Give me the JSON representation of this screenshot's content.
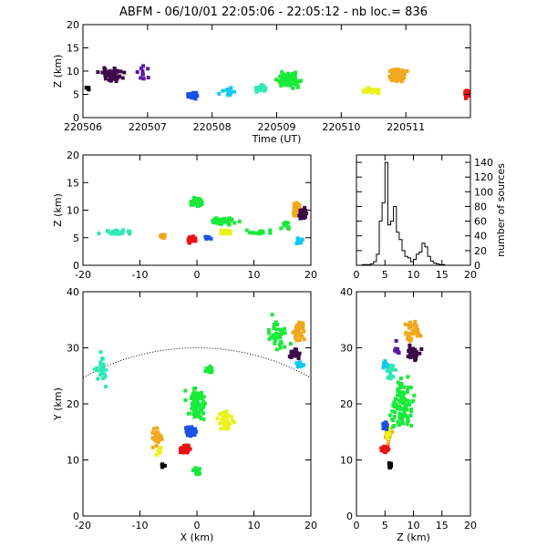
{
  "title": "ABFM - 06/10/01 22:05:06 - 22:05:12 - nb loc.=     836",
  "colors": {
    "black": "#000000",
    "dark_purple": "#3d0a4a",
    "purple": "#5a16a6",
    "blue": "#1a52e6",
    "cyan": "#13c8ee",
    "aqua": "#2ee9b4",
    "green": "#19ea3a",
    "yellow": "#e9f21a",
    "orange": "#f2a81c",
    "red": "#ed1212"
  },
  "chart_data": [
    {
      "id": "time-height",
      "type": "scatter",
      "xlabel": "Time (UT)",
      "ylabel": "Z (km)",
      "xlim": [
        220506,
        220512
      ],
      "ylim": [
        0,
        20
      ],
      "xticks": [
        "220506",
        "220507",
        "220508",
        "220509",
        "220510",
        "220511"
      ],
      "yticks": [
        "0",
        "5",
        "10",
        "15",
        "20"
      ],
      "clusters": [
        {
          "color": "black",
          "x": 220506.07,
          "dx": 0.06,
          "y": 6.2,
          "dy": 1.2,
          "n": 6
        },
        {
          "color": "dark_purple",
          "x": 220506.45,
          "dx": 0.3,
          "y": 9.2,
          "dy": 2.3,
          "n": 55
        },
        {
          "color": "purple",
          "x": 220506.95,
          "dx": 0.2,
          "y": 9.5,
          "dy": 3.0,
          "n": 10
        },
        {
          "color": "blue",
          "x": 220507.7,
          "dx": 0.12,
          "y": 4.8,
          "dy": 1.1,
          "n": 30
        },
        {
          "color": "cyan",
          "x": 220508.25,
          "dx": 0.2,
          "y": 5.5,
          "dy": 1.3,
          "n": 15
        },
        {
          "color": "aqua",
          "x": 220508.75,
          "dx": 0.2,
          "y": 6.3,
          "dy": 1.2,
          "n": 25
        },
        {
          "color": "green",
          "x": 220509.2,
          "dx": 0.3,
          "y": 8.0,
          "dy": 2.5,
          "n": 90
        },
        {
          "color": "yellow",
          "x": 220510.45,
          "dx": 0.22,
          "y": 5.8,
          "dy": 1.0,
          "n": 35
        },
        {
          "color": "orange",
          "x": 220510.85,
          "dx": 0.25,
          "y": 9.0,
          "dy": 2.3,
          "n": 80
        },
        {
          "color": "red",
          "x": 220511.95,
          "dx": 0.06,
          "y": 5.0,
          "dy": 1.6,
          "n": 30
        }
      ]
    },
    {
      "id": "x-height",
      "type": "scatter",
      "xlabel": "",
      "ylabel": "Z (km)",
      "xlim": [
        -20,
        20
      ],
      "ylim": [
        0,
        20
      ],
      "xticks": [
        "-20",
        "-10",
        "0",
        "10",
        "20"
      ],
      "yticks": [
        "0",
        "5",
        "10",
        "15",
        "20"
      ],
      "clusters": [
        {
          "color": "aqua",
          "x": -14,
          "dx": 5,
          "y": 6.0,
          "dy": 0.7,
          "n": 30
        },
        {
          "color": "orange",
          "x": -6,
          "dx": 1,
          "y": 5.3,
          "dy": 0.6,
          "n": 20
        },
        {
          "color": "red",
          "x": -1,
          "dx": 1.2,
          "y": 4.7,
          "dy": 1.0,
          "n": 40
        },
        {
          "color": "blue",
          "x": 2,
          "dx": 1.5,
          "y": 5.0,
          "dy": 0.4,
          "n": 12
        },
        {
          "color": "green",
          "x": 0,
          "dx": 1.5,
          "y": 11.5,
          "dy": 1.5,
          "n": 45
        },
        {
          "color": "green",
          "x": 5,
          "dx": 4,
          "y": 8.0,
          "dy": 1.5,
          "n": 40
        },
        {
          "color": "yellow",
          "x": 5,
          "dx": 2,
          "y": 6.0,
          "dy": 0.8,
          "n": 25
        },
        {
          "color": "green",
          "x": 11,
          "dx": 4,
          "y": 6.0,
          "dy": 0.8,
          "n": 15
        },
        {
          "color": "orange",
          "x": 17.5,
          "dx": 1.2,
          "y": 10.0,
          "dy": 2.5,
          "n": 45
        },
        {
          "color": "dark_purple",
          "x": 18.5,
          "dx": 1.0,
          "y": 9.5,
          "dy": 2.0,
          "n": 40
        },
        {
          "color": "cyan",
          "x": 18,
          "dx": 1.0,
          "y": 4.5,
          "dy": 1.0,
          "n": 15
        },
        {
          "color": "green",
          "x": 15.5,
          "dx": 1.5,
          "y": 7.5,
          "dy": 1.5,
          "n": 12
        }
      ]
    },
    {
      "id": "z-histogram",
      "type": "line",
      "ylabel": "number of sources",
      "xlim": [
        0,
        20
      ],
      "ylim": [
        0,
        150
      ],
      "xticks": [
        "0",
        "5",
        "10",
        "15",
        "20"
      ],
      "yticks": [
        "0",
        "20",
        "40",
        "60",
        "80",
        "100",
        "120",
        "140"
      ],
      "z": [
        0,
        0.5,
        1,
        1.5,
        2,
        2.5,
        3,
        3.5,
        4,
        4.5,
        5,
        5.5,
        6,
        6.5,
        7,
        7.5,
        8,
        8.5,
        9,
        9.5,
        10,
        10.5,
        11,
        11.5,
        12,
        12.5,
        13,
        13.5,
        14,
        14.5,
        15,
        15.5,
        16,
        16.5,
        17,
        17.5,
        18,
        18.5,
        19,
        19.5
      ],
      "counts": [
        0,
        0,
        1,
        1,
        1,
        2,
        5,
        15,
        60,
        85,
        140,
        55,
        60,
        80,
        45,
        35,
        20,
        12,
        10,
        5,
        8,
        15,
        18,
        30,
        25,
        12,
        6,
        3,
        2,
        1,
        1,
        0,
        0,
        0,
        0,
        0,
        0,
        0,
        0,
        0
      ]
    },
    {
      "id": "plan-view",
      "type": "scatter",
      "xlabel": "X (km)",
      "ylabel": "Y (km)",
      "xlim": [
        -20,
        20
      ],
      "ylim": [
        0,
        40
      ],
      "xticks": [
        "-20",
        "-10",
        "0",
        "10",
        "20"
      ],
      "yticks": [
        "0",
        "10",
        "20",
        "30",
        "40"
      ],
      "range_ring": {
        "center": [
          0,
          -10
        ],
        "radius_km": 40
      },
      "clusters": [
        {
          "color": "aqua",
          "x": -17,
          "dx": 3,
          "y": 26,
          "dy": 4,
          "n": 25
        },
        {
          "color": "orange",
          "x": -7,
          "dx": 1.5,
          "y": 14,
          "dy": 2.5,
          "n": 35
        },
        {
          "color": "yellow",
          "x": -6.5,
          "dx": 1,
          "y": 11.5,
          "dy": 1.5,
          "n": 12
        },
        {
          "color": "black",
          "x": -6,
          "dx": 0.8,
          "y": 9,
          "dy": 0.8,
          "n": 8
        },
        {
          "color": "red",
          "x": -2,
          "dx": 1.5,
          "y": 12,
          "dy": 1.2,
          "n": 30
        },
        {
          "color": "blue",
          "x": -1,
          "dx": 1.5,
          "y": 15,
          "dy": 1.5,
          "n": 30
        },
        {
          "color": "green",
          "x": 0,
          "dx": 3,
          "y": 20,
          "dy": 5,
          "n": 70
        },
        {
          "color": "green",
          "x": 2,
          "dx": 1.2,
          "y": 26,
          "dy": 1,
          "n": 25
        },
        {
          "color": "yellow",
          "x": 5,
          "dx": 2,
          "y": 17,
          "dy": 3,
          "n": 40
        },
        {
          "color": "green",
          "x": 14,
          "dx": 4,
          "y": 32,
          "dy": 5,
          "n": 40
        },
        {
          "color": "orange",
          "x": 18,
          "dx": 1.5,
          "y": 33,
          "dy": 3,
          "n": 40
        },
        {
          "color": "dark_purple",
          "x": 17,
          "dx": 2,
          "y": 29,
          "dy": 1.5,
          "n": 30
        },
        {
          "color": "cyan",
          "x": 18,
          "dx": 1.2,
          "y": 27,
          "dy": 1,
          "n": 15
        },
        {
          "color": "green",
          "x": 0,
          "dx": 1.5,
          "y": 8,
          "dy": 1.5,
          "n": 20
        }
      ]
    },
    {
      "id": "z-plan",
      "type": "scatter",
      "xlabel": "Z (km)",
      "ylabel": "",
      "xlim": [
        0,
        20
      ],
      "ylim": [
        0,
        40
      ],
      "xticks": [
        "0",
        "5",
        "10",
        "15",
        "20"
      ],
      "yticks": [
        "0",
        "10",
        "20",
        "30",
        "40"
      ],
      "clusters": [
        {
          "color": "black",
          "x": 6,
          "dx": 0.5,
          "y": 9,
          "dy": 0.8,
          "n": 8
        },
        {
          "color": "red",
          "x": 5,
          "dx": 1.2,
          "y": 12,
          "dy": 1.2,
          "n": 30
        },
        {
          "color": "orange",
          "x": 5.5,
          "dx": 1,
          "y": 15,
          "dy": 3,
          "n": 30
        },
        {
          "color": "yellow",
          "x": 5.5,
          "dx": 0.8,
          "y": 15,
          "dy": 2,
          "n": 15
        },
        {
          "color": "blue",
          "x": 5,
          "dx": 0.8,
          "y": 16,
          "dy": 1.5,
          "n": 20
        },
        {
          "color": "green",
          "x": 8,
          "dx": 3.5,
          "y": 20,
          "dy": 8,
          "n": 90
        },
        {
          "color": "aqua",
          "x": 6,
          "dx": 1.2,
          "y": 26,
          "dy": 3,
          "n": 20
        },
        {
          "color": "cyan",
          "x": 5,
          "dx": 1,
          "y": 27,
          "dy": 1,
          "n": 15
        },
        {
          "color": "dark_purple",
          "x": 10,
          "dx": 2.5,
          "y": 29,
          "dy": 2.5,
          "n": 35
        },
        {
          "color": "orange",
          "x": 10,
          "dx": 2.5,
          "y": 33,
          "dy": 3,
          "n": 40
        },
        {
          "color": "purple",
          "x": 7,
          "dx": 1,
          "y": 30,
          "dy": 2,
          "n": 8
        }
      ]
    }
  ]
}
